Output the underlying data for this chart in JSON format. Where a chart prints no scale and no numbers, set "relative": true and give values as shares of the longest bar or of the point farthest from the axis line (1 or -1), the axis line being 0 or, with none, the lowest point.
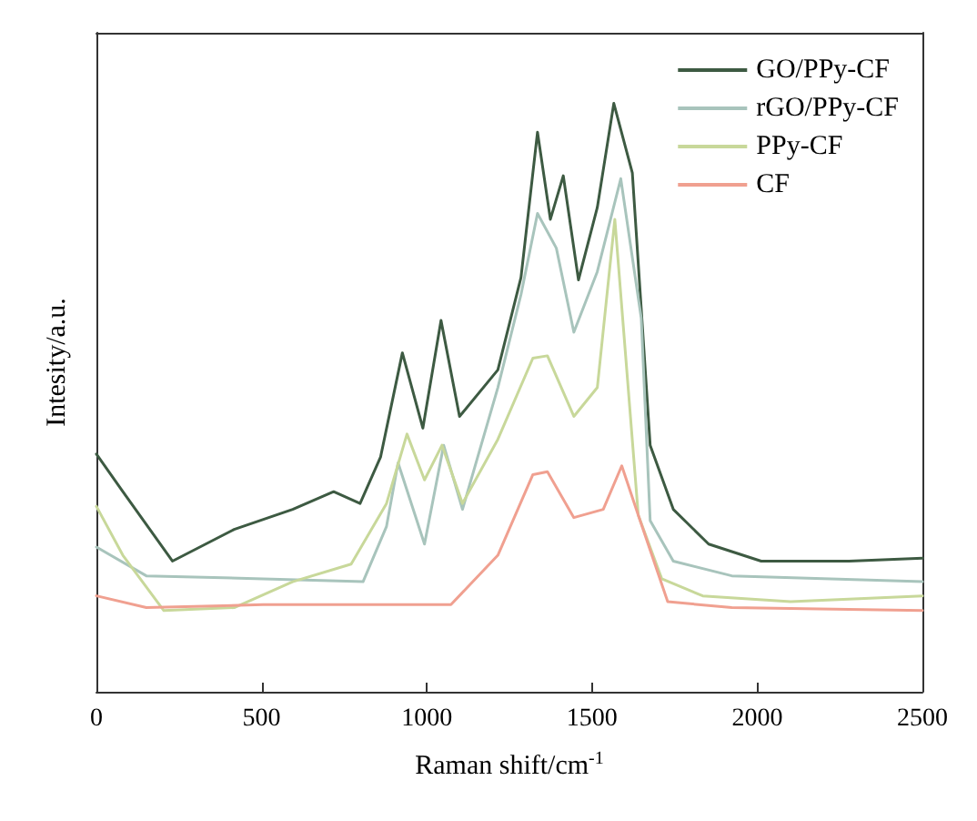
{
  "chart_data": {
    "type": "line",
    "relative": true,
    "xlabel": "Raman shift/cm$^{-1}$",
    "ylabel": "Intesity/a.u.",
    "xlim": [
      0,
      2500
    ],
    "xticks": [
      0,
      500,
      1000,
      1500,
      2000,
      2500
    ],
    "grid": false,
    "legend": "top right",
    "marker": "none",
    "line_style": "solid",
    "series": [
      {
        "name": "GO/PPy-CF",
        "color": "#3d5a42",
        "x": [
          0,
          80,
          230,
          417,
          594,
          718,
          798,
          860,
          926,
          988,
          1043,
          1099,
          1215,
          1285,
          1335,
          1374,
          1413,
          1459,
          1516,
          1566,
          1622,
          1676,
          1746,
          1853,
          2012,
          2278,
          2500
        ],
        "values": [
          0.404,
          0.34,
          0.222,
          0.276,
          0.31,
          0.34,
          0.32,
          0.399,
          0.576,
          0.448,
          0.631,
          0.468,
          0.547,
          0.704,
          0.951,
          0.803,
          0.877,
          0.7,
          0.823,
          1.0,
          0.882,
          0.419,
          0.31,
          0.251,
          0.222,
          0.222,
          0.227
        ]
      },
      {
        "name": "rGO/PPy-CF",
        "color": "#a8c4bc",
        "x": [
          0,
          151,
          505,
          807,
          878,
          913,
          993,
          1051,
          1108,
          1215,
          1285,
          1335,
          1392,
          1445,
          1516,
          1587,
          1649,
          1676,
          1746,
          1923,
          2500
        ],
        "values": [
          0.246,
          0.197,
          0.192,
          0.187,
          0.281,
          0.389,
          0.251,
          0.419,
          0.31,
          0.517,
          0.675,
          0.813,
          0.754,
          0.611,
          0.714,
          0.872,
          0.635,
          0.291,
          0.222,
          0.197,
          0.187
        ]
      },
      {
        "name": "PPy-CF",
        "color": "#c8d89a",
        "x": [
          0,
          80,
          204,
          417,
          594,
          771,
          878,
          940,
          993,
          1046,
          1108,
          1215,
          1321,
          1365,
          1445,
          1516,
          1569,
          1640,
          1711,
          1835,
          2101,
          2500
        ],
        "values": [
          0.315,
          0.232,
          0.138,
          0.143,
          0.187,
          0.217,
          0.32,
          0.438,
          0.36,
          0.419,
          0.32,
          0.429,
          0.567,
          0.571,
          0.468,
          0.517,
          0.803,
          0.3,
          0.192,
          0.163,
          0.153,
          0.163
        ]
      },
      {
        "name": "CF",
        "color": "#f0a090",
        "x": [
          0,
          151,
          505,
          1073,
          1215,
          1321,
          1365,
          1445,
          1534,
          1590,
          1640,
          1729,
          1923,
          2500
        ],
        "values": [
          0.163,
          0.143,
          0.148,
          0.148,
          0.232,
          0.369,
          0.374,
          0.296,
          0.31,
          0.384,
          0.3,
          0.153,
          0.143,
          0.138
        ]
      }
    ]
  }
}
